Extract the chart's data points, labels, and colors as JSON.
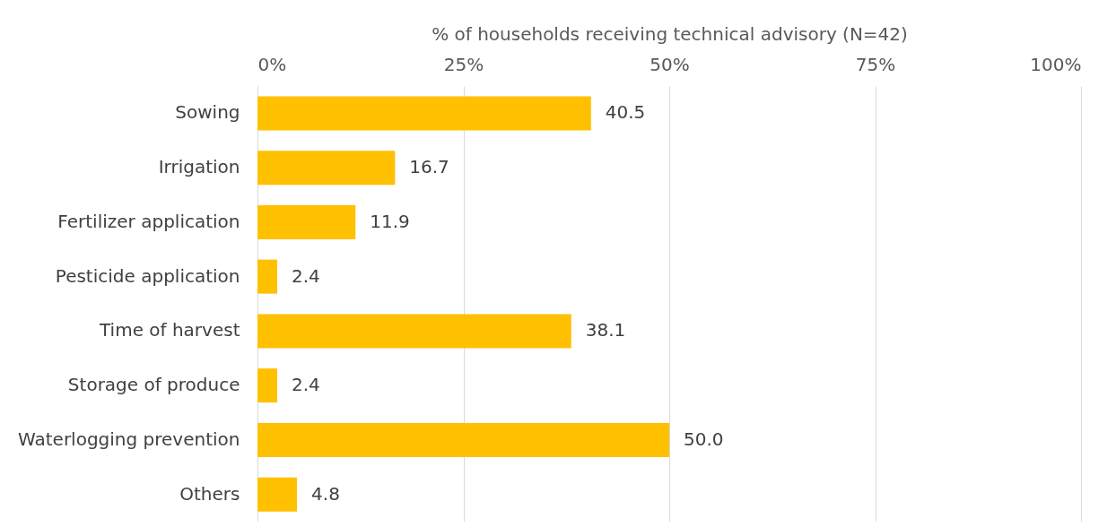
{
  "chart_data": {
    "type": "bar",
    "orientation": "horizontal",
    "xlabel": "% of households receiving technical advisory (N=42)",
    "categories": [
      "Sowing",
      "Irrigation",
      "Fertilizer application",
      "Pesticide application",
      "Time of harvest",
      "Storage of produce",
      "Waterlogging prevention",
      "Others"
    ],
    "values": [
      40.5,
      16.7,
      11.9,
      2.4,
      38.1,
      2.4,
      50.0,
      4.8
    ],
    "value_labels": [
      "40.5",
      "16.7",
      "11.9",
      "2.4",
      "38.1",
      "2.4",
      "50.0",
      "4.8"
    ],
    "color": "#ffc000",
    "grid": "x",
    "xlim": [
      0,
      100
    ],
    "xticks": [
      {
        "value": 0,
        "label": "0%"
      },
      {
        "value": 25,
        "label": "25%"
      },
      {
        "value": 50,
        "label": "50%"
      },
      {
        "value": 75,
        "label": "75%"
      },
      {
        "value": 100,
        "label": "100%"
      }
    ]
  }
}
